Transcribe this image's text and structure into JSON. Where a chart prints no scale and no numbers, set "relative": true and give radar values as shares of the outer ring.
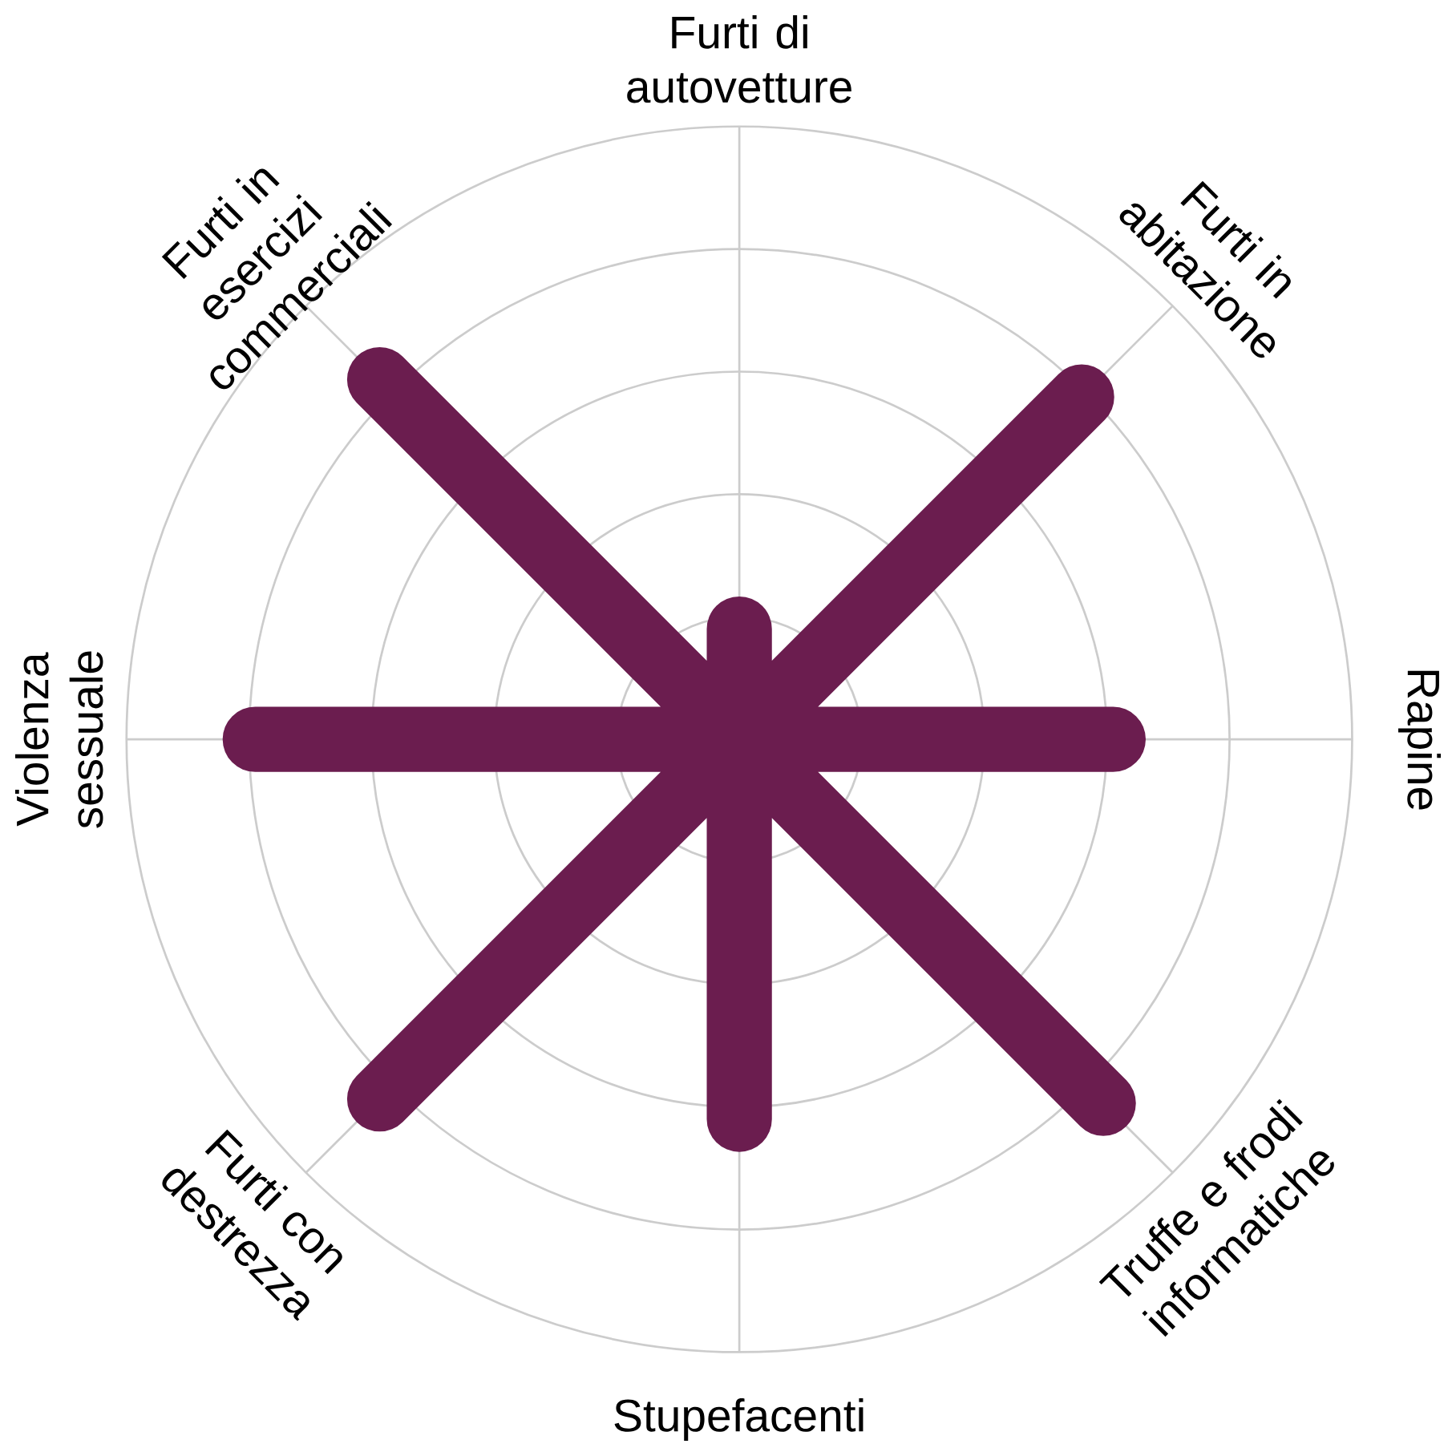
{
  "chart_data": {
    "type": "radar",
    "relative": true,
    "grid": true,
    "marker": "none",
    "categories": [
      "Furti di autovetture",
      "Furti in abitazione",
      "Rapine",
      "Truffe e frodi informatiche",
      "Stupefacenti",
      "Furti con destrezza",
      "Violenza sessuale",
      "Furti in esercizi commerciali"
    ],
    "series": [
      {
        "color": "#6b1d4f",
        "values": [
          0.18,
          0.79,
          0.61,
          0.84,
          0.62,
          0.83,
          0.79,
          0.83
        ]
      }
    ]
  }
}
